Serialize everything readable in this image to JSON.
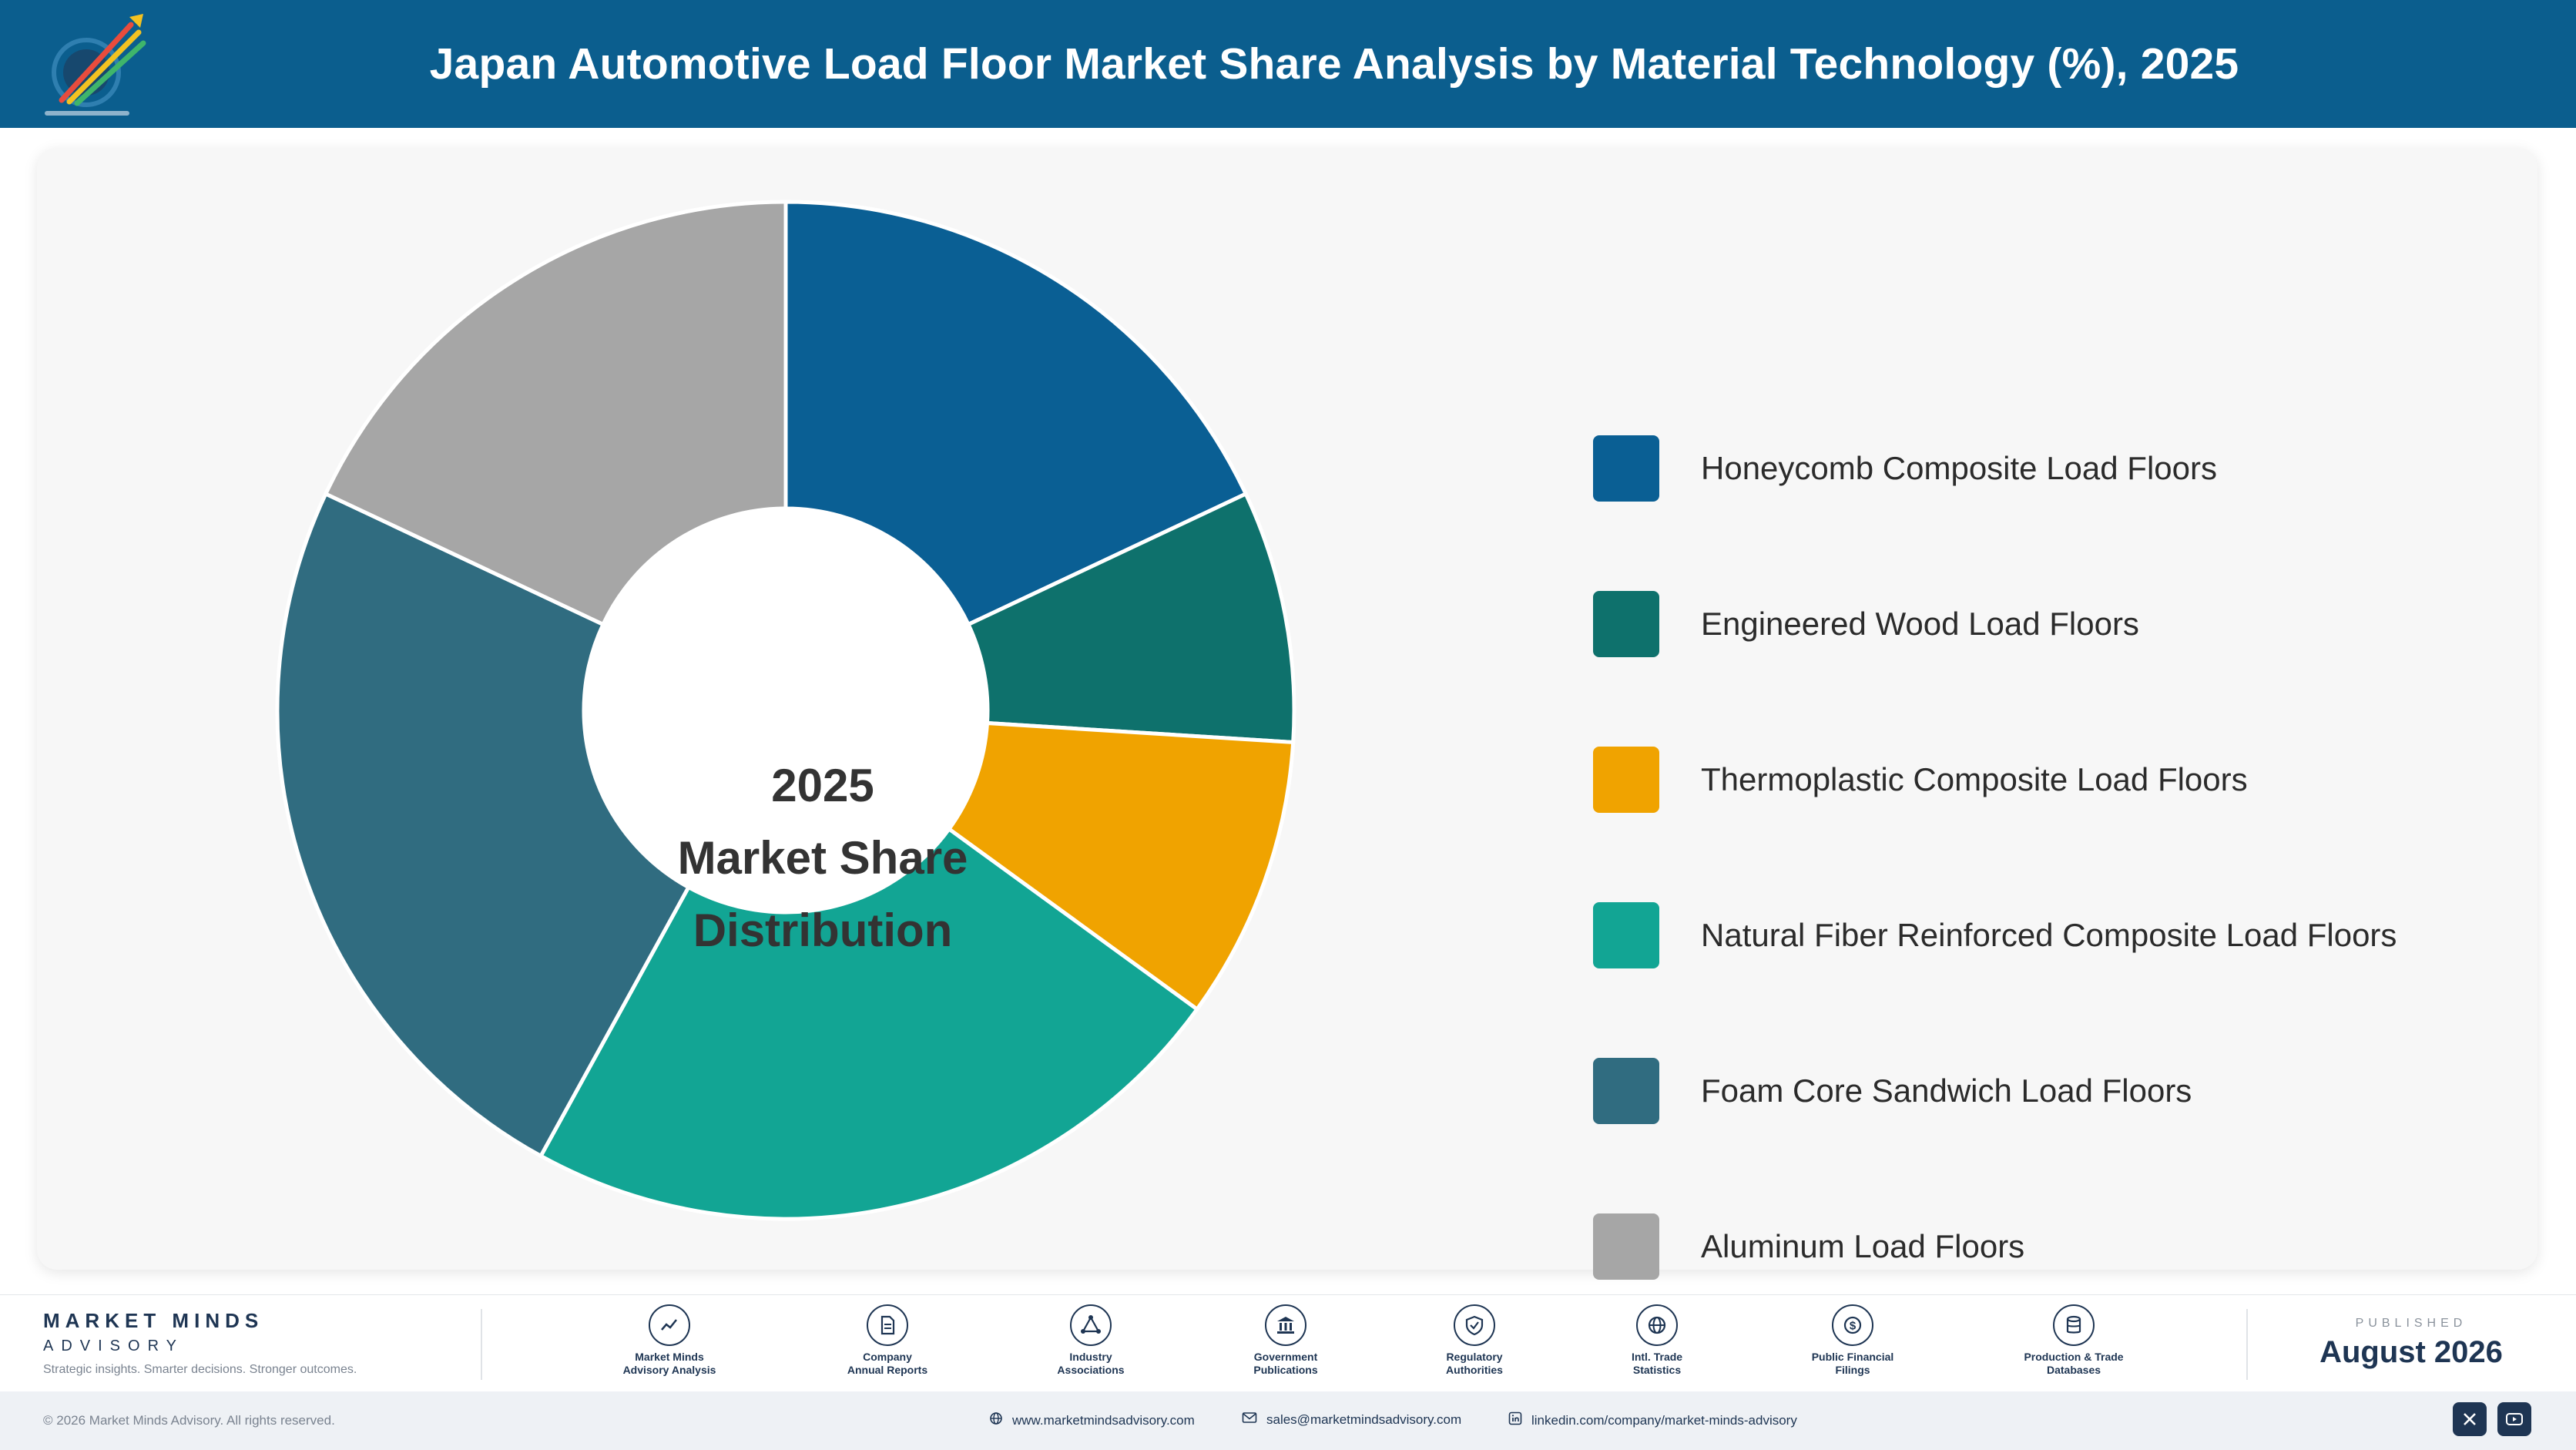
{
  "header": {
    "title": "Japan Automotive Load Floor Market Share Analysis by Material Technology (%), 2025",
    "logo_icon": "market-minds-logo"
  },
  "chart_data": {
    "type": "pie",
    "center_label": [
      "2025",
      "Market Share",
      "Distribution"
    ],
    "categories": [
      "Honeycomb Composite Load Floors",
      "Engineered Wood Load Floors",
      "Thermoplastic Composite Load Floors",
      "Natural Fiber Reinforced Composite Load Floors",
      "Foam Core Sandwich Load Floors",
      "Aluminum Load Floors"
    ],
    "values": [
      18,
      8,
      9,
      23,
      24,
      18
    ],
    "colors": [
      "#0a5f94",
      "#0e716c",
      "#f0a300",
      "#12a594",
      "#306c80",
      "#a6a6a6"
    ],
    "legend_placement": "right"
  },
  "footer": {
    "brand_name": "MARKET MINDS",
    "brand_sub": "ADVISORY",
    "brand_tagline": "Strategic insights. Smarter decisions. Stronger outcomes.",
    "sources": [
      {
        "line1": "Market Minds",
        "line2": "Advisory Analysis",
        "icon": "trend-chart-icon"
      },
      {
        "line1": "Company",
        "line2": "Annual Reports",
        "icon": "document-icon"
      },
      {
        "line1": "Industry",
        "line2": "Associations",
        "icon": "network-icon"
      },
      {
        "line1": "Government",
        "line2": "Publications",
        "icon": "government-building-icon"
      },
      {
        "line1": "Regulatory",
        "line2": "Authorities",
        "icon": "shield-check-icon"
      },
      {
        "line1": "Intl. Trade",
        "line2": "Statistics",
        "icon": "globe-icon"
      },
      {
        "line1": "Public Financial",
        "line2": "Filings",
        "icon": "dollar-coin-icon"
      },
      {
        "line1": "Production & Trade",
        "line2": "Databases",
        "icon": "database-icon"
      }
    ],
    "published_label": "PUBLISHED",
    "published_date": "August 2026",
    "copyright": "© 2026 Market Minds Advisory. All rights reserved.",
    "website": "www.marketmindsadvisory.com",
    "email": "sales@marketmindsadvisory.com",
    "linkedin": "linkedin.com/company/market-minds-advisory"
  }
}
